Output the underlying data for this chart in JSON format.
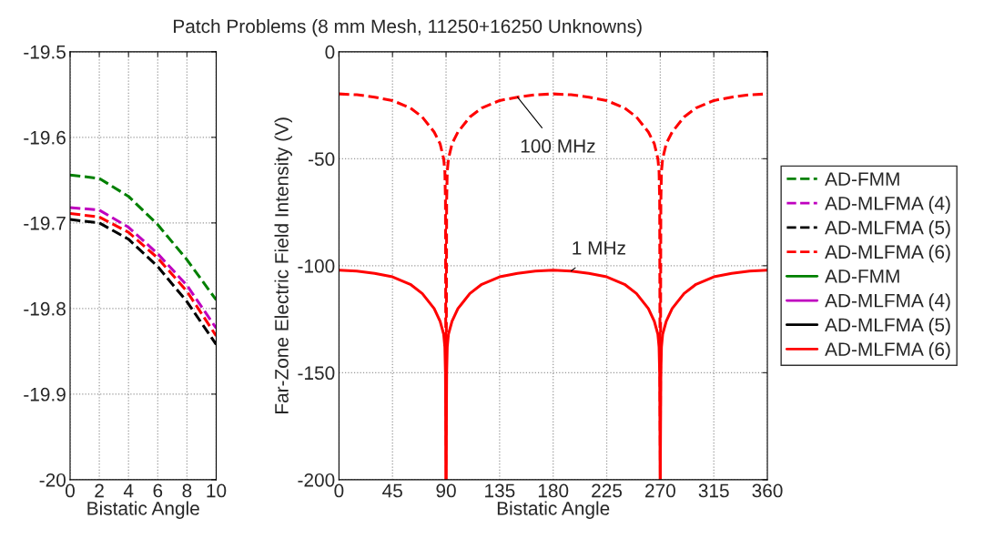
{
  "chart_data": [
    {
      "type": "line",
      "xlabel": "Bistatic Angle",
      "x": [
        0,
        2,
        4,
        6,
        8,
        10
      ],
      "xlim": [
        0,
        10
      ],
      "xticks": [
        0,
        2,
        4,
        6,
        8,
        10
      ],
      "ylim": [
        -20,
        -19.5
      ],
      "yticks": [
        -20,
        -19.9,
        -19.8,
        -19.7,
        -19.6,
        -19.5
      ],
      "grid": true,
      "legend": false,
      "series": [
        {
          "color": "#008000",
          "line_style": "dashed",
          "values": [
            -19.644,
            -19.648,
            -19.669,
            -19.702,
            -19.743,
            -19.79
          ]
        },
        {
          "color": "#bf00bf",
          "line_style": "dashed",
          "values": [
            -19.682,
            -19.685,
            -19.705,
            -19.736,
            -19.773,
            -19.823
          ]
        },
        {
          "color": "#000000",
          "line_style": "dashed",
          "values": [
            -19.696,
            -19.7,
            -19.719,
            -19.751,
            -19.792,
            -19.842
          ]
        },
        {
          "color": "#ff0000",
          "line_style": "dashed",
          "values": [
            -19.689,
            -19.693,
            -19.711,
            -19.741,
            -19.78,
            -19.832
          ]
        }
      ]
    },
    {
      "type": "line",
      "title": "Patch Problems (8 mm Mesh, 11250+16250 Unknowns)",
      "xlabel": "Bistatic Angle",
      "ylabel": "Far-Zone Electric Field Intensity (V)",
      "x": [
        0,
        15,
        30,
        45,
        60,
        70,
        80,
        85,
        88,
        89,
        89.5,
        90,
        90.5,
        91,
        92,
        95,
        100,
        110,
        120,
        135,
        150,
        165,
        180,
        195,
        210,
        225,
        240,
        250,
        260,
        265,
        268,
        269,
        269.5,
        270,
        270.5,
        271,
        272,
        275,
        280,
        290,
        300,
        315,
        330,
        345,
        360
      ],
      "xlim": [
        0,
        360
      ],
      "xticks": [
        0,
        45,
        90,
        135,
        180,
        225,
        270,
        315,
        360
      ],
      "ylim": [
        -200,
        0
      ],
      "yticks": [
        -200,
        -150,
        -100,
        -50,
        0
      ],
      "grid": true,
      "legend": "right",
      "annotations": [
        {
          "text": "100 MHz",
          "x": 150,
          "y": -21.2
        },
        {
          "text": "1 MHz",
          "x": 195,
          "y": -102.5
        }
      ],
      "series": [
        {
          "name": "AD-FMM",
          "color": "#008000",
          "line_style": "dashed",
          "values": [
            null,
            null,
            null,
            null,
            null,
            null,
            null,
            null,
            null,
            null,
            null,
            null,
            null,
            null,
            null,
            null,
            null,
            null,
            null,
            null,
            null,
            null,
            null,
            null,
            null,
            null,
            null,
            null,
            null,
            null,
            null,
            null,
            null,
            null,
            null,
            null,
            null,
            null,
            null,
            null,
            null,
            null,
            null,
            null,
            null
          ]
        },
        {
          "name": "AD-MLFMA (4)",
          "color": "#bf00bf",
          "line_style": "dashed",
          "values": [
            null,
            null,
            null,
            null,
            null,
            null,
            null,
            null,
            null,
            null,
            null,
            null,
            null,
            null,
            null,
            null,
            null,
            null,
            null,
            null,
            null,
            null,
            null,
            null,
            null,
            null,
            null,
            null,
            null,
            null,
            null,
            null,
            null,
            null,
            null,
            null,
            null,
            null,
            null,
            null,
            null,
            null,
            null,
            null,
            null
          ]
        },
        {
          "name": "AD-MLFMA (5)",
          "color": "#000000",
          "line_style": "dashed",
          "values": [
            null,
            null,
            null,
            null,
            null,
            null,
            null,
            null,
            null,
            null,
            null,
            null,
            null,
            null,
            null,
            null,
            null,
            null,
            null,
            null,
            null,
            null,
            null,
            null,
            null,
            null,
            null,
            null,
            null,
            null,
            null,
            null,
            null,
            null,
            null,
            null,
            null,
            null,
            null,
            null,
            null,
            null,
            null,
            null,
            null
          ]
        },
        {
          "name": "AD-MLFMA (6)",
          "color": "#ff0000",
          "line_style": "dashed",
          "values": [
            -19.7,
            -20.1,
            -21.2,
            -22.8,
            -26.3,
            -30.5,
            -37.5,
            -43,
            -50,
            -56,
            -70,
            -200,
            -70,
            -56,
            -50,
            -43,
            -37.5,
            -30.5,
            -26.3,
            -22.8,
            -21.2,
            -20.1,
            -19.7,
            -20.1,
            -21.2,
            -22.8,
            -26.3,
            -30.5,
            -37.5,
            -43,
            -50,
            -56,
            -70,
            -200,
            -70,
            -56,
            -50,
            -43,
            -37.5,
            -30.5,
            -26.3,
            -22.8,
            -21.2,
            -20.1,
            -19.7
          ]
        },
        {
          "name": "AD-FMM",
          "color": "#008000",
          "line_style": "solid",
          "values": [
            null,
            null,
            null,
            null,
            null,
            null,
            null,
            null,
            null,
            null,
            null,
            null,
            null,
            null,
            null,
            null,
            null,
            null,
            null,
            null,
            null,
            null,
            null,
            null,
            null,
            null,
            null,
            null,
            null,
            null,
            null,
            null,
            null,
            null,
            null,
            null,
            null,
            null,
            null,
            null,
            null,
            null,
            null,
            null,
            null
          ]
        },
        {
          "name": "AD-MLFMA (4)",
          "color": "#bf00bf",
          "line_style": "solid",
          "values": [
            null,
            null,
            null,
            null,
            null,
            null,
            null,
            null,
            null,
            null,
            null,
            null,
            null,
            null,
            null,
            null,
            null,
            null,
            null,
            null,
            null,
            null,
            null,
            null,
            null,
            null,
            null,
            null,
            null,
            null,
            null,
            null,
            null,
            null,
            null,
            null,
            null,
            null,
            null,
            null,
            null,
            null,
            null,
            null,
            null
          ]
        },
        {
          "name": "AD-MLFMA (5)",
          "color": "#000000",
          "line_style": "solid",
          "values": [
            null,
            null,
            null,
            null,
            null,
            null,
            null,
            null,
            null,
            null,
            null,
            null,
            null,
            null,
            null,
            null,
            null,
            null,
            null,
            null,
            null,
            null,
            null,
            null,
            null,
            null,
            null,
            null,
            null,
            null,
            null,
            null,
            null,
            null,
            null,
            null,
            null,
            null,
            null,
            null,
            null,
            null,
            null,
            null,
            null
          ]
        },
        {
          "name": "AD-MLFMA (6)",
          "color": "#ff0000",
          "line_style": "solid",
          "values": [
            -102.1,
            -102.5,
            -103.6,
            -105.2,
            -108.7,
            -113,
            -120,
            -126,
            -132,
            -138,
            -150,
            -200,
            -150,
            -138,
            -132,
            -126,
            -120,
            -113,
            -108.7,
            -105.2,
            -103.6,
            -102.5,
            -102.1,
            -102.5,
            -103.6,
            -105.2,
            -108.7,
            -113,
            -120,
            -126,
            -132,
            -138,
            -150,
            -200,
            -150,
            -138,
            -132,
            -126,
            -120,
            -113,
            -108.7,
            -105.2,
            -103.6,
            -102.5,
            -102.1
          ]
        }
      ]
    }
  ]
}
